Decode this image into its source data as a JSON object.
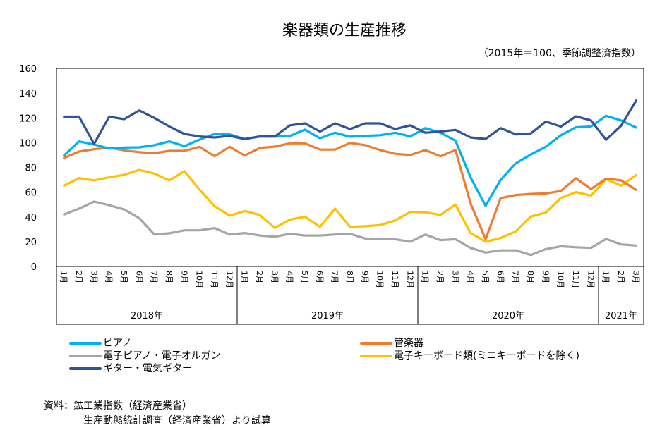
{
  "chart_data": {
    "type": "line",
    "title": "楽器類の生産推移",
    "subtitle": "（2015年＝100、季節調整済指数）",
    "xlabel": "",
    "ylabel": "",
    "ylim": [
      0,
      160
    ],
    "yticks": [
      0,
      20,
      40,
      60,
      80,
      100,
      120,
      140,
      160
    ],
    "grid": false,
    "legend_position": "bottom",
    "month_labels": [
      "1月",
      "2月",
      "3月",
      "4月",
      "5月",
      "6月",
      "7月",
      "8月",
      "9月",
      "10月",
      "11月",
      "12月",
      "1月",
      "2月",
      "3月",
      "4月",
      "5月",
      "6月",
      "7月",
      "8月",
      "9月",
      "10月",
      "11月",
      "12月",
      "1月",
      "2月",
      "3月",
      "4月",
      "5月",
      "6月",
      "7月",
      "8月",
      "9月",
      "10月",
      "11月",
      "12月",
      "1月",
      "2月",
      "3月"
    ],
    "year_groups": [
      {
        "label": "2018年",
        "months": 12
      },
      {
        "label": "2019年",
        "months": 12
      },
      {
        "label": "2020年",
        "months": 12
      },
      {
        "label": "2021年",
        "months": 3
      }
    ],
    "series": [
      {
        "name": "ピアノ",
        "color": "#00B0F0",
        "values": [
          89.6,
          101,
          98.5,
          95.3,
          96,
          96.2,
          98,
          101,
          97.2,
          102.5,
          107,
          106.7,
          103,
          105,
          105,
          105.4,
          110.5,
          103.6,
          108,
          104.8,
          105.5,
          106,
          108,
          105,
          111.8,
          108,
          101.7,
          72,
          49,
          70,
          83.3,
          90.4,
          96.6,
          106,
          112.4,
          113,
          121.7,
          117.9,
          112.2
        ]
      },
      {
        "name": "管楽器",
        "color": "#ED7D31",
        "values": [
          87.7,
          92.8,
          94.7,
          96,
          93.8,
          92.3,
          91.5,
          93.4,
          93.4,
          96.6,
          89,
          96.6,
          89.6,
          95.7,
          96.8,
          99.5,
          99.5,
          94.4,
          94.4,
          99.8,
          98,
          94,
          91,
          90,
          94,
          89,
          94,
          51,
          22,
          55.2,
          57.7,
          58.6,
          59,
          61,
          71.3,
          62.5,
          71,
          69.5,
          61.9
        ]
      },
      {
        "name": "電子ピアノ・電子オルガン",
        "color": "#A5A5A5",
        "values": [
          42,
          46.7,
          52.4,
          49.5,
          46,
          39,
          25.8,
          26.8,
          29.2,
          29.2,
          31,
          25.8,
          27,
          25,
          24,
          26.4,
          25,
          25,
          25.8,
          26.4,
          22.6,
          22,
          22,
          20,
          25.8,
          21.3,
          22,
          15,
          11.2,
          13,
          13,
          9.3,
          14,
          16.3,
          15.5,
          15,
          22.2,
          17.8,
          16.9
        ]
      },
      {
        "name": "電子キーボード類(ミニキーボードを除く)",
        "color": "#FFC000",
        "values": [
          65.3,
          71.4,
          69.5,
          72,
          74,
          78,
          75,
          69.5,
          77,
          62,
          48.6,
          41,
          44.8,
          41.6,
          31.1,
          37.8,
          40.2,
          32,
          46.7,
          32,
          32.5,
          33.4,
          37.2,
          44,
          43.8,
          41.6,
          50,
          27,
          20,
          23,
          28.3,
          40.3,
          43.5,
          55.4,
          60,
          57.2,
          70.6,
          65.3,
          73.8
        ]
      },
      {
        "name": "ギター・電気ギター",
        "color": "#2F5597",
        "values": [
          121,
          121,
          99,
          121,
          119,
          126,
          120,
          113,
          107,
          105,
          104.2,
          105.5,
          102.9,
          105,
          105,
          114,
          115.6,
          109,
          115.6,
          111,
          115.6,
          115.6,
          111,
          114,
          108,
          109,
          110.3,
          104.2,
          103,
          111.8,
          106.7,
          107.4,
          117,
          113,
          121.3,
          118,
          102.3,
          113.7,
          134
        ]
      }
    ]
  },
  "legend": {
    "left": [
      {
        "label": "ピアノ",
        "color": "#00B0F0"
      },
      {
        "label": "電子ピアノ・電子オルガン",
        "color": "#A5A5A5"
      },
      {
        "label": "ギター・電気ギター",
        "color": "#2F5597"
      }
    ],
    "right": [
      {
        "label": "管楽器",
        "color": "#ED7D31"
      },
      {
        "label": "電子キーボード類(ミニキーボードを除く)",
        "color": "#FFC000"
      }
    ]
  },
  "source": {
    "line1": "資料：鉱工業指数（経済産業省）",
    "line2": "生産動態統計調査（経済産業省）より試算"
  }
}
